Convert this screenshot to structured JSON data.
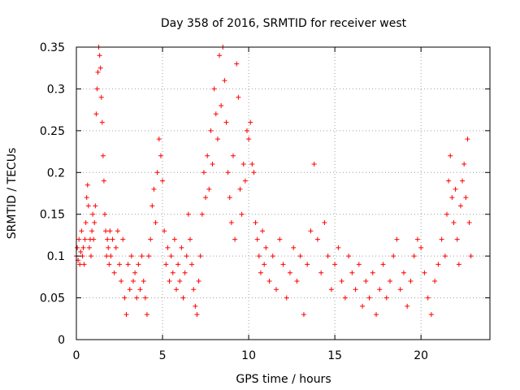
{
  "chart_data": {
    "type": "scatter",
    "title": "Day 358 of 2016, SRMTID for receiver west",
    "xlabel": "GPS time / hours",
    "ylabel": "SRMTID / TECUs",
    "xlim": [
      0,
      24
    ],
    "ylim": [
      0,
      0.35
    ],
    "x_ticks": [
      0,
      5,
      10,
      15,
      20
    ],
    "y_ticks": [
      0,
      0.05,
      0.1,
      0.15,
      0.2,
      0.25,
      0.3,
      0.35
    ],
    "x_tick_labels": [
      "0",
      "5",
      "10",
      "15",
      "20"
    ],
    "y_tick_labels": [
      "0",
      "0.05",
      "0.1",
      "0.15",
      "0.2",
      "0.25",
      "0.3",
      "0.35"
    ],
    "grid": true,
    "marker": "+",
    "color": "#ff0000",
    "series": [
      {
        "name": "SRMTID",
        "points": [
          [
            0.0,
            0.1
          ],
          [
            0.05,
            0.11
          ],
          [
            0.1,
            0.095
          ],
          [
            0.15,
            0.12
          ],
          [
            0.2,
            0.09
          ],
          [
            0.25,
            0.105
          ],
          [
            0.3,
            0.13
          ],
          [
            0.35,
            0.1
          ],
          [
            0.4,
            0.11
          ],
          [
            0.45,
            0.09
          ],
          [
            0.5,
            0.12
          ],
          [
            0.55,
            0.14
          ],
          [
            0.6,
            0.17
          ],
          [
            0.65,
            0.185
          ],
          [
            0.7,
            0.16
          ],
          [
            0.75,
            0.11
          ],
          [
            0.8,
            0.12
          ],
          [
            0.85,
            0.1
          ],
          [
            0.9,
            0.13
          ],
          [
            0.95,
            0.15
          ],
          [
            1.0,
            0.12
          ],
          [
            1.05,
            0.14
          ],
          [
            1.1,
            0.16
          ],
          [
            1.15,
            0.27
          ],
          [
            1.2,
            0.3
          ],
          [
            1.25,
            0.32
          ],
          [
            1.3,
            0.35
          ],
          [
            1.35,
            0.34
          ],
          [
            1.4,
            0.325
          ],
          [
            1.45,
            0.29
          ],
          [
            1.5,
            0.26
          ],
          [
            1.55,
            0.22
          ],
          [
            1.6,
            0.19
          ],
          [
            1.65,
            0.15
          ],
          [
            1.7,
            0.13
          ],
          [
            1.75,
            0.1
          ],
          [
            1.8,
            0.12
          ],
          [
            1.85,
            0.11
          ],
          [
            1.9,
            0.09
          ],
          [
            1.95,
            0.13
          ],
          [
            2.0,
            0.1
          ],
          [
            2.1,
            0.12
          ],
          [
            2.2,
            0.08
          ],
          [
            2.3,
            0.11
          ],
          [
            2.4,
            0.13
          ],
          [
            2.5,
            0.09
          ],
          [
            2.6,
            0.07
          ],
          [
            2.7,
            0.12
          ],
          [
            2.8,
            0.05
          ],
          [
            2.9,
            0.03
          ],
          [
            3.0,
            0.09
          ],
          [
            3.1,
            0.06
          ],
          [
            3.2,
            0.1
          ],
          [
            3.3,
            0.07
          ],
          [
            3.4,
            0.08
          ],
          [
            3.5,
            0.05
          ],
          [
            3.6,
            0.09
          ],
          [
            3.7,
            0.06
          ],
          [
            3.8,
            0.1
          ],
          [
            3.9,
            0.07
          ],
          [
            4.0,
            0.05
          ],
          [
            4.1,
            0.03
          ],
          [
            4.2,
            0.1
          ],
          [
            4.3,
            0.12
          ],
          [
            4.4,
            0.16
          ],
          [
            4.5,
            0.18
          ],
          [
            4.6,
            0.14
          ],
          [
            4.7,
            0.2
          ],
          [
            4.8,
            0.24
          ],
          [
            4.9,
            0.22
          ],
          [
            5.0,
            0.19
          ],
          [
            5.1,
            0.13
          ],
          [
            5.2,
            0.09
          ],
          [
            5.3,
            0.11
          ],
          [
            5.4,
            0.07
          ],
          [
            5.5,
            0.1
          ],
          [
            5.6,
            0.08
          ],
          [
            5.7,
            0.12
          ],
          [
            5.8,
            0.06
          ],
          [
            5.9,
            0.09
          ],
          [
            6.0,
            0.07
          ],
          [
            6.1,
            0.11
          ],
          [
            6.2,
            0.05
          ],
          [
            6.3,
            0.08
          ],
          [
            6.4,
            0.1
          ],
          [
            6.5,
            0.15
          ],
          [
            6.6,
            0.12
          ],
          [
            6.7,
            0.09
          ],
          [
            6.8,
            0.06
          ],
          [
            6.9,
            0.04
          ],
          [
            7.0,
            0.03
          ],
          [
            7.1,
            0.07
          ],
          [
            7.2,
            0.1
          ],
          [
            7.3,
            0.15
          ],
          [
            7.4,
            0.2
          ],
          [
            7.5,
            0.17
          ],
          [
            7.6,
            0.22
          ],
          [
            7.7,
            0.18
          ],
          [
            7.8,
            0.25
          ],
          [
            7.9,
            0.21
          ],
          [
            8.0,
            0.3
          ],
          [
            8.1,
            0.27
          ],
          [
            8.2,
            0.24
          ],
          [
            8.3,
            0.34
          ],
          [
            8.4,
            0.28
          ],
          [
            8.5,
            0.35
          ],
          [
            8.6,
            0.31
          ],
          [
            8.7,
            0.26
          ],
          [
            8.8,
            0.2
          ],
          [
            8.9,
            0.17
          ],
          [
            9.0,
            0.14
          ],
          [
            9.1,
            0.22
          ],
          [
            9.2,
            0.12
          ],
          [
            9.3,
            0.33
          ],
          [
            9.4,
            0.29
          ],
          [
            9.5,
            0.18
          ],
          [
            9.6,
            0.15
          ],
          [
            9.7,
            0.21
          ],
          [
            9.8,
            0.19
          ],
          [
            9.9,
            0.25
          ],
          [
            10.0,
            0.24
          ],
          [
            10.1,
            0.26
          ],
          [
            10.2,
            0.21
          ],
          [
            10.3,
            0.2
          ],
          [
            10.4,
            0.14
          ],
          [
            10.5,
            0.12
          ],
          [
            10.6,
            0.1
          ],
          [
            10.7,
            0.08
          ],
          [
            10.8,
            0.13
          ],
          [
            10.9,
            0.09
          ],
          [
            11.0,
            0.11
          ],
          [
            11.2,
            0.07
          ],
          [
            11.4,
            0.1
          ],
          [
            11.6,
            0.06
          ],
          [
            11.8,
            0.12
          ],
          [
            12.0,
            0.09
          ],
          [
            12.2,
            0.05
          ],
          [
            12.4,
            0.08
          ],
          [
            12.6,
            0.11
          ],
          [
            12.8,
            0.07
          ],
          [
            13.0,
            0.1
          ],
          [
            13.2,
            0.03
          ],
          [
            13.4,
            0.09
          ],
          [
            13.6,
            0.13
          ],
          [
            13.8,
            0.21
          ],
          [
            14.0,
            0.12
          ],
          [
            14.2,
            0.08
          ],
          [
            14.4,
            0.14
          ],
          [
            14.6,
            0.1
          ],
          [
            14.8,
            0.06
          ],
          [
            15.0,
            0.09
          ],
          [
            15.2,
            0.11
          ],
          [
            15.4,
            0.07
          ],
          [
            15.6,
            0.05
          ],
          [
            15.8,
            0.1
          ],
          [
            16.0,
            0.08
          ],
          [
            16.2,
            0.06
          ],
          [
            16.4,
            0.09
          ],
          [
            16.6,
            0.04
          ],
          [
            16.8,
            0.07
          ],
          [
            17.0,
            0.05
          ],
          [
            17.2,
            0.08
          ],
          [
            17.4,
            0.03
          ],
          [
            17.6,
            0.06
          ],
          [
            17.8,
            0.09
          ],
          [
            18.0,
            0.05
          ],
          [
            18.2,
            0.07
          ],
          [
            18.4,
            0.1
          ],
          [
            18.6,
            0.12
          ],
          [
            18.8,
            0.06
          ],
          [
            19.0,
            0.08
          ],
          [
            19.2,
            0.04
          ],
          [
            19.4,
            0.07
          ],
          [
            19.6,
            0.1
          ],
          [
            19.8,
            0.12
          ],
          [
            20.0,
            0.11
          ],
          [
            20.2,
            0.08
          ],
          [
            20.4,
            0.05
          ],
          [
            20.6,
            0.03
          ],
          [
            20.8,
            0.07
          ],
          [
            21.0,
            0.09
          ],
          [
            21.2,
            0.12
          ],
          [
            21.4,
            0.1
          ],
          [
            21.5,
            0.15
          ],
          [
            21.6,
            0.19
          ],
          [
            21.7,
            0.22
          ],
          [
            21.8,
            0.17
          ],
          [
            21.9,
            0.14
          ],
          [
            22.0,
            0.18
          ],
          [
            22.1,
            0.12
          ],
          [
            22.2,
            0.09
          ],
          [
            22.3,
            0.16
          ],
          [
            22.4,
            0.19
          ],
          [
            22.5,
            0.21
          ],
          [
            22.6,
            0.17
          ],
          [
            22.7,
            0.24
          ],
          [
            22.8,
            0.14
          ],
          [
            22.9,
            0.1
          ]
        ]
      }
    ]
  }
}
